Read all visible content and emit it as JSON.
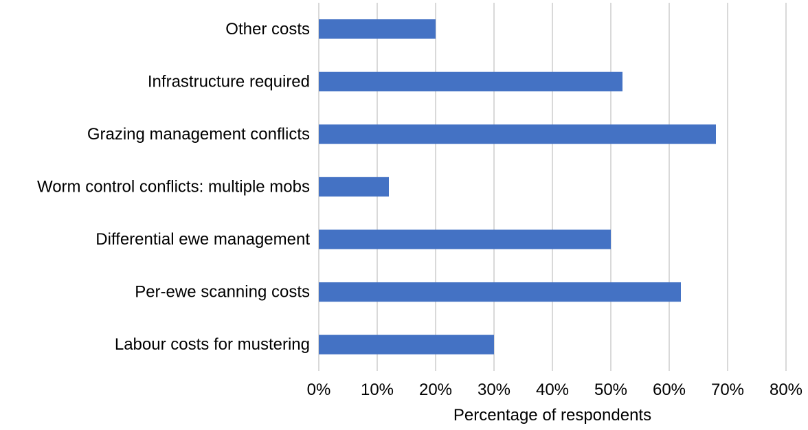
{
  "chart_data": {
    "type": "bar",
    "orientation": "horizontal",
    "categories": [
      "Other costs",
      "Infrastructure required",
      "Grazing management conflicts",
      "Worm control conflicts: multiple mobs",
      "Differential ewe management",
      "Per-ewe scanning costs",
      "Labour costs for mustering"
    ],
    "values": [
      20,
      52,
      68,
      12,
      50,
      62,
      30
    ],
    "title": "",
    "xlabel": "Percentage of respondents",
    "ylabel": "",
    "xlim": [
      0,
      80
    ],
    "xticks": [
      0,
      10,
      20,
      30,
      40,
      50,
      60,
      70,
      80
    ],
    "xtick_labels": [
      "0%",
      "10%",
      "20%",
      "30%",
      "40%",
      "50%",
      "60%",
      "70%",
      "80%"
    ],
    "grid": "vertical",
    "legend": "none",
    "bar_color": "#4472c4",
    "grid_color": "#d9d9d9"
  }
}
